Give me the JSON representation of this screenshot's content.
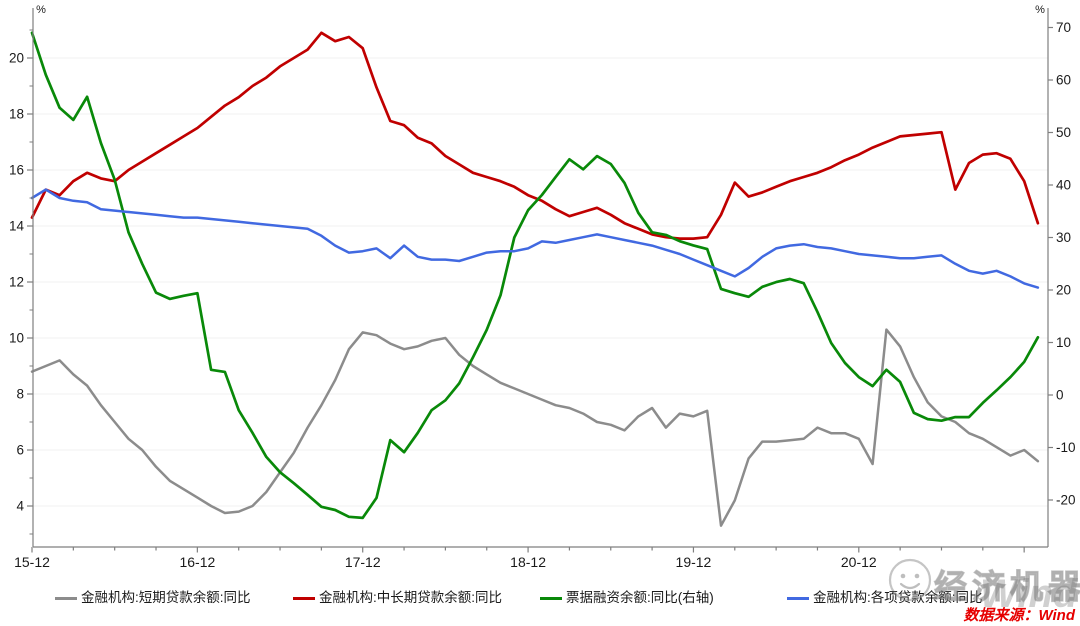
{
  "axes": {
    "left": {
      "unit": "%",
      "ticks": [
        20,
        18,
        16,
        14,
        12,
        10,
        8,
        6,
        4
      ],
      "minor_ticks": [
        21,
        19,
        17,
        15,
        13,
        11,
        9,
        7,
        5,
        3
      ]
    },
    "right": {
      "unit": "%",
      "ticks": [
        70,
        60,
        50,
        40,
        30,
        20,
        10,
        0,
        -10,
        -20
      ]
    },
    "x": {
      "tick_labels": [
        "15-12",
        "16-12",
        "17-12",
        "18-12",
        "19-12",
        "20-12"
      ],
      "tick_month_indices": [
        0,
        12,
        24,
        36,
        48,
        60
      ],
      "minor_every_months": 3
    }
  },
  "chart_data": {
    "type": "line",
    "title": "",
    "x": [
      "15-12",
      "16-01",
      "16-02",
      "16-03",
      "16-04",
      "16-05",
      "16-06",
      "16-07",
      "16-08",
      "16-09",
      "16-10",
      "16-11",
      "16-12",
      "17-01",
      "17-02",
      "17-03",
      "17-04",
      "17-05",
      "17-06",
      "17-07",
      "17-08",
      "17-09",
      "17-10",
      "17-11",
      "17-12",
      "18-01",
      "18-02",
      "18-03",
      "18-04",
      "18-05",
      "18-06",
      "18-07",
      "18-08",
      "18-09",
      "18-10",
      "18-11",
      "18-12",
      "19-01",
      "19-02",
      "19-03",
      "19-04",
      "19-05",
      "19-06",
      "19-07",
      "19-08",
      "19-09",
      "19-10",
      "19-11",
      "19-12",
      "20-01",
      "20-02",
      "20-03",
      "20-04",
      "20-05",
      "20-06",
      "20-07",
      "20-08",
      "20-09",
      "20-10",
      "20-11",
      "20-12",
      "21-01",
      "21-02",
      "21-03",
      "21-04",
      "21-05",
      "21-06",
      "21-07",
      "21-08",
      "21-09",
      "21-10",
      "21-11",
      "21-12",
      "22-01"
    ],
    "series": [
      {
        "name": "金融机构:短期贷款余额:同比",
        "axis": "left",
        "color": "#8c8c8c",
        "width": 2.5,
        "values": [
          8.8,
          9.0,
          9.2,
          8.7,
          8.3,
          7.6,
          7.0,
          6.4,
          6.0,
          5.4,
          4.9,
          4.6,
          4.3,
          4.0,
          3.75,
          3.8,
          4.0,
          4.5,
          5.2,
          5.9,
          6.8,
          7.6,
          8.5,
          9.6,
          10.2,
          10.1,
          9.8,
          9.6,
          9.7,
          9.9,
          10.0,
          9.4,
          9.0,
          8.7,
          8.4,
          8.2,
          8.0,
          7.8,
          7.6,
          7.5,
          7.3,
          7.0,
          6.9,
          6.7,
          7.2,
          7.5,
          6.8,
          7.3,
          7.2,
          7.4,
          3.3,
          4.2,
          5.7,
          6.3,
          6.3,
          6.35,
          6.4,
          6.8,
          6.6,
          6.6,
          6.4,
          5.5,
          10.3,
          9.7,
          8.6,
          7.7,
          7.2,
          7.0,
          6.6,
          6.4,
          6.1,
          5.8,
          6.0,
          5.6
        ]
      },
      {
        "name": "金融机构:中长期贷款余额:同比",
        "axis": "left",
        "color": "#c00000",
        "width": 2.7,
        "values": [
          14.3,
          15.3,
          15.1,
          15.6,
          15.9,
          15.7,
          15.6,
          16.0,
          16.3,
          16.6,
          16.9,
          17.2,
          17.5,
          17.9,
          18.3,
          18.6,
          19.0,
          19.3,
          19.7,
          20.0,
          20.3,
          20.9,
          20.6,
          20.75,
          20.35,
          18.95,
          17.75,
          17.6,
          17.15,
          16.95,
          16.5,
          16.2,
          15.9,
          15.75,
          15.6,
          15.4,
          15.1,
          14.9,
          14.6,
          14.35,
          14.5,
          14.65,
          14.4,
          14.1,
          13.9,
          13.7,
          13.6,
          13.55,
          13.55,
          13.6,
          14.4,
          15.55,
          15.05,
          15.2,
          15.4,
          15.6,
          15.75,
          15.9,
          16.1,
          16.35,
          16.55,
          16.8,
          17.0,
          17.2,
          17.25,
          17.3,
          17.35,
          15.3,
          16.25,
          16.55,
          16.6,
          16.4,
          15.6,
          14.1
        ]
      },
      {
        "name": "票据融资余额:同比(右轴)",
        "axis": "right",
        "color": "#098909",
        "width": 2.7,
        "values": [
          69,
          61,
          54.7,
          52.4,
          56.8,
          48,
          41,
          31,
          25,
          19.5,
          18.3,
          18.9,
          19.4,
          4.8,
          4.4,
          -2.9,
          -7.2,
          -11.8,
          -14.7,
          -16.8,
          -19.0,
          -21.3,
          -21.9,
          -23.2,
          -23.4,
          -19.6,
          -8.6,
          -10.9,
          -7.2,
          -2.9,
          -1.0,
          2.2,
          7.2,
          12.4,
          19.0,
          30.0,
          35.2,
          38.1,
          41.5,
          44.9,
          43.0,
          45.5,
          44.0,
          40.4,
          34.7,
          31.0,
          30.5,
          29.3,
          28.5,
          27.8,
          20.2,
          19.4,
          18.7,
          20.6,
          21.5,
          22.1,
          21.3,
          15.8,
          9.9,
          6.1,
          3.4,
          1.7,
          4.8,
          2.5,
          -3.4,
          -4.6,
          -4.9,
          -4.2,
          -4.2,
          -1.5,
          0.9,
          3.4,
          6.3,
          11.0
        ]
      },
      {
        "name": "金融机构:各项贷款余额:同比",
        "axis": "left",
        "color": "#4169e1",
        "width": 2.5,
        "values": [
          15.0,
          15.3,
          15.0,
          14.9,
          14.85,
          14.6,
          14.55,
          14.5,
          14.45,
          14.4,
          14.35,
          14.3,
          14.3,
          14.25,
          14.2,
          14.15,
          14.1,
          14.05,
          14.0,
          13.95,
          13.9,
          13.65,
          13.3,
          13.05,
          13.1,
          13.2,
          12.85,
          13.3,
          12.9,
          12.8,
          12.8,
          12.75,
          12.9,
          13.05,
          13.1,
          13.1,
          13.2,
          13.45,
          13.4,
          13.5,
          13.6,
          13.7,
          13.6,
          13.5,
          13.4,
          13.3,
          13.15,
          13.0,
          12.8,
          12.6,
          12.4,
          12.2,
          12.5,
          12.9,
          13.2,
          13.3,
          13.35,
          13.25,
          13.2,
          13.1,
          13.0,
          12.95,
          12.9,
          12.85,
          12.85,
          12.9,
          12.95,
          12.65,
          12.4,
          12.3,
          12.4,
          12.2,
          11.95,
          11.8
        ]
      }
    ],
    "left_ylim": [
      2.5,
      21.7
    ],
    "right_ylim": [
      -29,
      73.7
    ],
    "grid": "horizontal, at left-axis major ticks, very light",
    "legend_position": "bottom"
  },
  "watermark": {
    "brand_cn": "经济机器",
    "brand_wind": "Wind"
  },
  "source": {
    "text": "数据来源：Wind"
  }
}
